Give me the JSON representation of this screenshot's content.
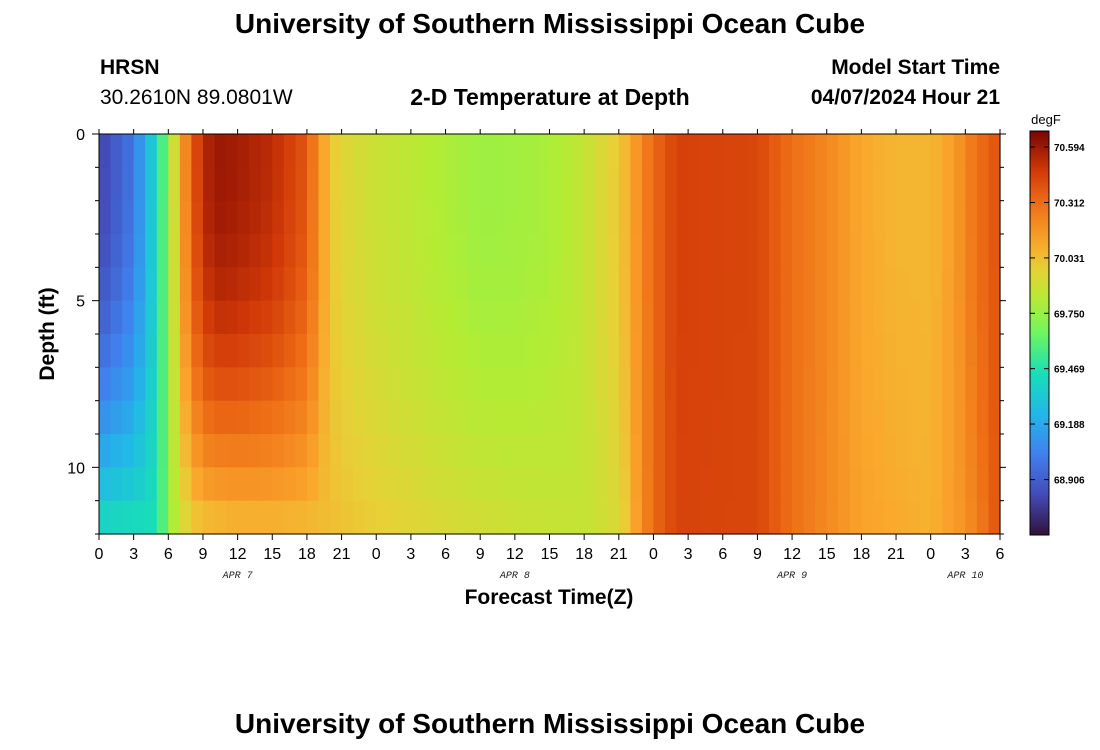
{
  "page": {
    "title_top": "University of Southern Mississippi Ocean Cube",
    "title_bottom": "University of Southern Mississippi Ocean Cube",
    "station_name": "HRSN",
    "station_coords": "30.2610N  89.0801W",
    "plot_title": "2-D Temperature at Depth",
    "model_label": "Model Start Time",
    "model_time": "04/07/2024 Hour 21"
  },
  "chart_data": {
    "type": "heatmap",
    "title": "2-D Temperature at Depth",
    "xlabel": "Forecast Time(Z)",
    "ylabel": "Depth (ft)",
    "x_range_hours": [
      0,
      78
    ],
    "y_range_ft": [
      0,
      12
    ],
    "x_tick_labels": [
      "0",
      "3",
      "6",
      "9",
      "12",
      "15",
      "18",
      "21",
      "0",
      "3",
      "6",
      "9",
      "12",
      "15",
      "18",
      "21",
      "0",
      "3",
      "6",
      "9",
      "12",
      "15",
      "18",
      "21",
      "0",
      "3",
      "6"
    ],
    "date_labels": [
      {
        "text": "APR 7",
        "hour": 12
      },
      {
        "text": "APR 8",
        "hour": 36
      },
      {
        "text": "APR 9",
        "hour": 60
      },
      {
        "text": "APR 10",
        "hour": 75
      }
    ],
    "y_ticks": [
      0,
      5,
      10
    ],
    "colorbar": {
      "unit": "degF",
      "min": 68.625,
      "max": 70.675,
      "tick_values": [
        70.594,
        70.312,
        70.031,
        69.75,
        69.469,
        69.188,
        68.906
      ],
      "tick_labels": [
        "70.594",
        "70.312",
        "70.031",
        "69.750",
        "69.469",
        "69.188",
        "68.906"
      ]
    },
    "depth_levels_ft": [
      0.5,
      1.5,
      2.5,
      3.5,
      4.5,
      5.5,
      6.5,
      7.5,
      8.5,
      9.5,
      10.5,
      11.5
    ],
    "surface_temperature_profile": {
      "hours": [
        0,
        3,
        5,
        6,
        7,
        8,
        9,
        10,
        12,
        15,
        18,
        19,
        20,
        21,
        24,
        30,
        33,
        36,
        39,
        42,
        45,
        46,
        47,
        48,
        50,
        57,
        60,
        63,
        66,
        69,
        72,
        74,
        75,
        76,
        78
      ],
      "values": [
        68.8,
        69.0,
        69.42,
        69.72,
        70.08,
        70.35,
        70.52,
        70.6,
        70.58,
        70.52,
        70.38,
        70.18,
        70.02,
        69.95,
        69.88,
        69.8,
        69.76,
        69.77,
        69.79,
        69.86,
        70.0,
        70.1,
        70.22,
        70.32,
        70.45,
        70.43,
        70.3,
        70.22,
        70.1,
        70.06,
        70.06,
        70.14,
        70.22,
        70.3,
        70.4
      ]
    },
    "bottom_temperature_profile": {
      "hours": [
        0,
        5,
        6,
        7,
        8,
        9,
        12,
        15,
        18,
        21,
        24,
        30,
        36,
        42,
        45,
        46,
        47,
        48,
        50,
        57,
        60,
        66,
        72,
        75,
        78
      ],
      "values": [
        69.38,
        69.44,
        69.72,
        69.9,
        70.0,
        70.05,
        70.08,
        70.08,
        70.06,
        70.02,
        69.98,
        69.92,
        69.88,
        69.86,
        69.93,
        70.05,
        70.2,
        70.32,
        70.44,
        70.43,
        70.3,
        70.12,
        70.07,
        70.18,
        70.4
      ]
    }
  }
}
